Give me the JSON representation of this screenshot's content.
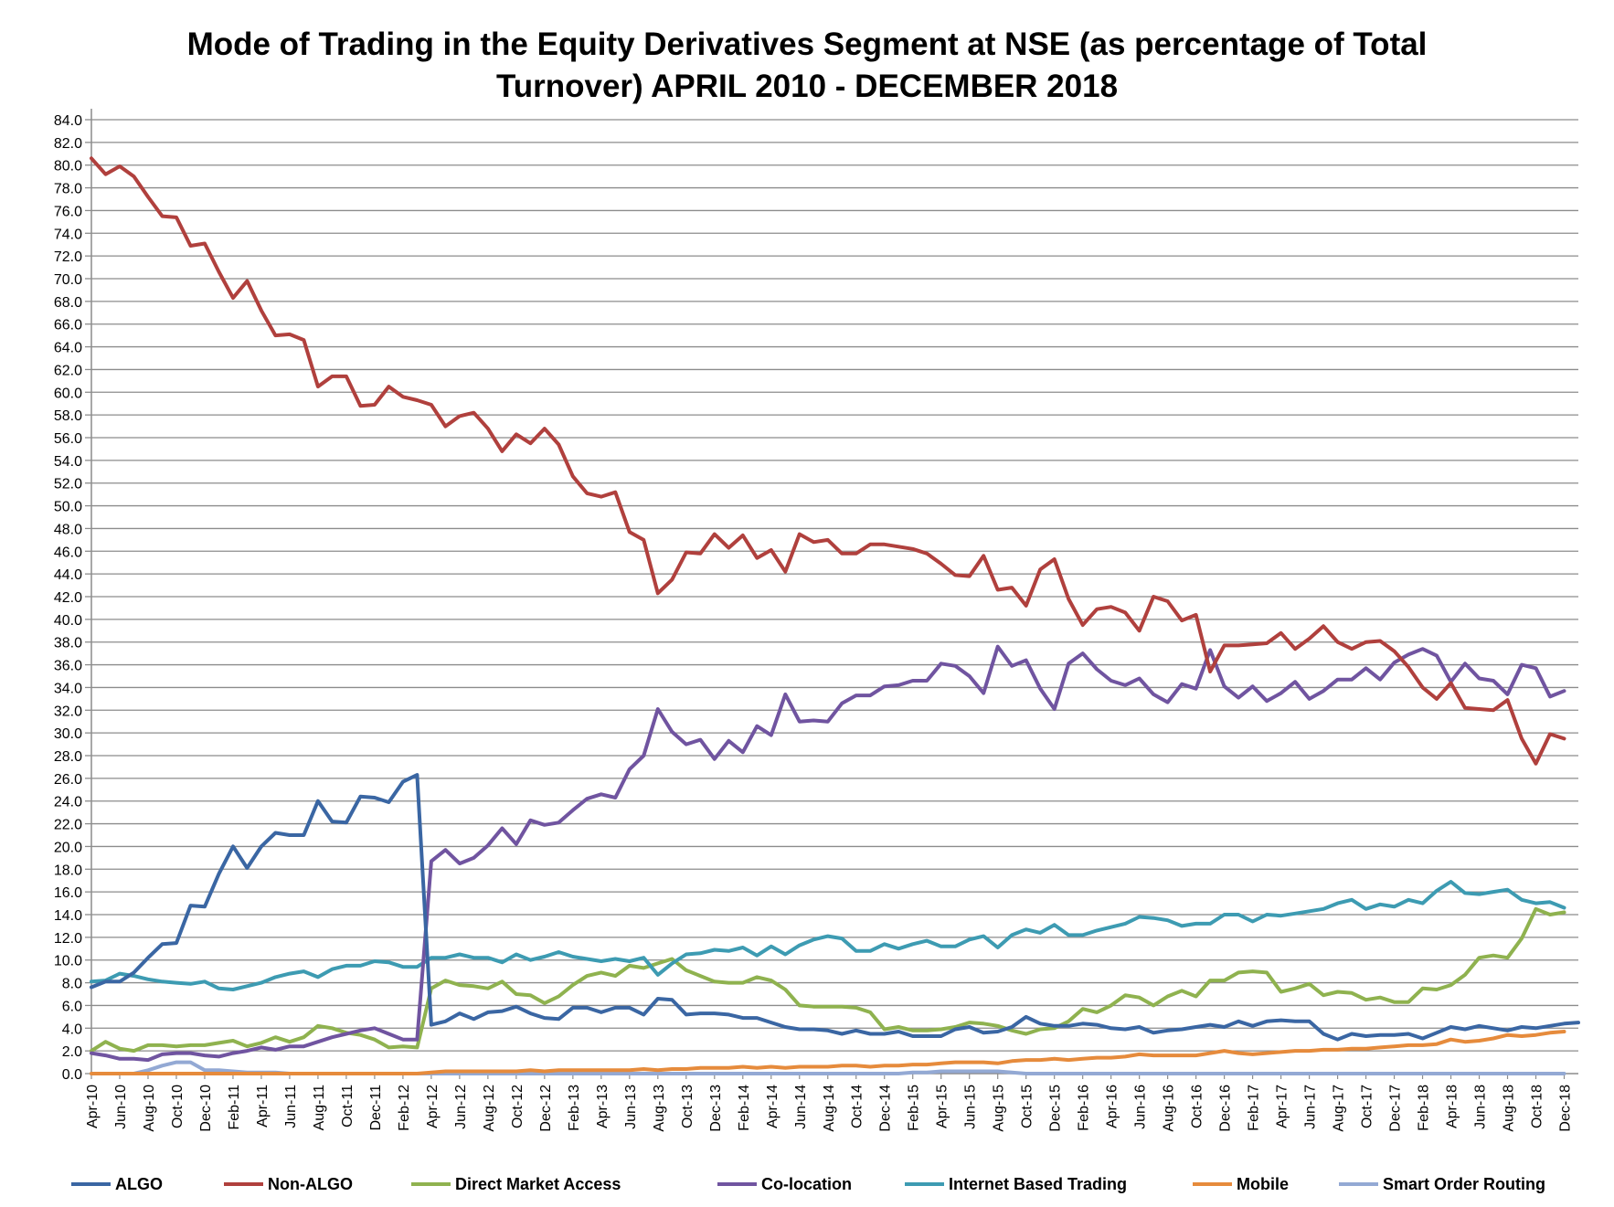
{
  "chart_data": {
    "type": "line",
    "title": "Mode of Trading in the Equity Derivatives Segment at NSE (as percentage of Total Turnover) APRIL 2010 - DECEMBER 2018",
    "title_lines": [
      "Mode of Trading in the Equity Derivatives Segment at NSE (as percentage of Total",
      "Turnover) APRIL 2010 - DECEMBER 2018"
    ],
    "xlabel": "",
    "ylabel": "",
    "ylim": [
      0,
      84
    ],
    "y_ticks": [
      "0.0",
      "2.0",
      "4.0",
      "6.0",
      "8.0",
      "10.0",
      "12.0",
      "14.0",
      "16.0",
      "18.0",
      "20.0",
      "22.0",
      "24.0",
      "26.0",
      "28.0",
      "30.0",
      "32.0",
      "34.0",
      "36.0",
      "38.0",
      "40.0",
      "42.0",
      "44.0",
      "46.0",
      "48.0",
      "50.0",
      "52.0",
      "54.0",
      "56.0",
      "58.0",
      "60.0",
      "62.0",
      "64.0",
      "66.0",
      "68.0",
      "70.0",
      "72.0",
      "74.0",
      "76.0",
      "78.0",
      "80.0",
      "82.0",
      "84.0"
    ],
    "x_start": "Apr-10",
    "x_end": "Dec-18",
    "x_tick_labels": [
      "Apr-10",
      "Jun-10",
      "Aug-10",
      "Oct-10",
      "Dec-10",
      "Feb-11",
      "Apr-11",
      "Jun-11",
      "Aug-11",
      "Oct-11",
      "Dec-11",
      "Feb-12",
      "Apr-12",
      "Jun-12",
      "Aug-12",
      "Oct-12",
      "Dec-12",
      "Feb-13",
      "Apr-13",
      "Jun-13",
      "Aug-13",
      "Oct-13",
      "Dec-13",
      "Feb-14",
      "Apr-14",
      "Jun-14",
      "Aug-14",
      "Oct-14",
      "Dec-14",
      "Feb-15",
      "Apr-15",
      "Jun-15",
      "Aug-15",
      "Oct-15",
      "Dec-15",
      "Feb-16",
      "Apr-16",
      "Jun-16",
      "Aug-16",
      "Oct-16",
      "Dec-16",
      "Feb-17",
      "Apr-17",
      "Jun-17",
      "Aug-17",
      "Oct-17",
      "Dec-17",
      "Feb-18",
      "Apr-18",
      "Jun-18",
      "Aug-18",
      "Oct-18",
      "Dec-18"
    ],
    "grid": "horizontal",
    "legend_position": "bottom",
    "series": [
      {
        "name": "ALGO",
        "color": "#3a66a3",
        "values": [
          7.6,
          8.1,
          8.1,
          8.9,
          10.2,
          11.4,
          11.5,
          14.8,
          14.7,
          17.6,
          20.0,
          18.1,
          20.0,
          21.2,
          21.0,
          21.0,
          24.0,
          22.2,
          22.1,
          24.4,
          24.3,
          23.9,
          25.7,
          26.3,
          4.3,
          4.6,
          5.3,
          4.8,
          5.4,
          5.5,
          5.9,
          5.3,
          4.9,
          4.8,
          5.8,
          5.8,
          5.4,
          5.8,
          5.8,
          5.2,
          6.6,
          6.5,
          5.2,
          5.3,
          5.3,
          5.2,
          4.9,
          4.9,
          4.5,
          4.1,
          3.9,
          3.9,
          3.8,
          3.5,
          3.8,
          3.5,
          3.5,
          3.7,
          3.3,
          3.3,
          3.3,
          3.9,
          4.1,
          3.6,
          3.7,
          4.1,
          5.0,
          4.4,
          4.2,
          4.2,
          4.4,
          4.3,
          4.0,
          3.9,
          4.1,
          3.6,
          3.8,
          3.9,
          4.1,
          4.3,
          4.1,
          4.6,
          4.2,
          4.6,
          4.7,
          4.6,
          4.6,
          3.5,
          3.0,
          3.5,
          3.3,
          3.4,
          3.4,
          3.5,
          3.1,
          3.6,
          4.1,
          3.9,
          4.2,
          4.0,
          3.8,
          4.1,
          4.0,
          4.2,
          4.4,
          4.5
        ]
      },
      {
        "name": "Non-ALGO",
        "color": "#b0403d",
        "values": [
          80.6,
          79.2,
          79.9,
          79.0,
          77.2,
          75.5,
          75.4,
          72.9,
          73.1,
          70.6,
          68.3,
          69.8,
          67.2,
          65.0,
          65.1,
          64.6,
          60.5,
          61.4,
          61.4,
          58.8,
          58.9,
          60.5,
          59.6,
          59.3,
          58.9,
          57.0,
          57.9,
          58.2,
          56.8,
          54.8,
          56.3,
          55.5,
          56.8,
          55.4,
          52.6,
          51.1,
          50.8,
          51.2,
          47.7,
          47.0,
          42.3,
          43.5,
          45.9,
          45.8,
          47.5,
          46.3,
          47.4,
          45.4,
          46.1,
          44.2,
          47.5,
          46.8,
          47.0,
          45.8,
          45.8,
          46.6,
          46.6,
          46.4,
          46.2,
          45.8,
          44.9,
          43.9,
          43.8,
          45.6,
          42.6,
          42.8,
          41.2,
          44.4,
          45.3,
          41.8,
          39.5,
          40.9,
          41.1,
          40.6,
          39.0,
          42.0,
          41.6,
          39.9,
          40.4,
          35.4,
          37.7,
          37.7,
          37.8,
          37.9,
          38.8,
          37.4,
          38.3,
          39.4,
          38.0,
          37.4,
          38.0,
          38.1,
          37.2,
          35.8,
          34.0,
          33.0,
          34.4,
          32.2,
          32.1,
          32.0,
          32.9,
          29.5,
          27.3,
          29.9,
          29.5
        ]
      },
      {
        "name": "Direct Market Access",
        "color": "#8fb24f",
        "values": [
          2.0,
          2.8,
          2.2,
          2.0,
          2.5,
          2.5,
          2.4,
          2.5,
          2.5,
          2.7,
          2.9,
          2.4,
          2.7,
          3.2,
          2.8,
          3.2,
          4.2,
          4.0,
          3.6,
          3.4,
          3.0,
          2.3,
          2.4,
          2.3,
          7.5,
          8.2,
          7.8,
          7.7,
          7.5,
          8.1,
          7.0,
          6.9,
          6.2,
          6.8,
          7.8,
          8.6,
          8.9,
          8.6,
          9.5,
          9.3,
          9.7,
          10.1,
          9.1,
          8.6,
          8.1,
          8.0,
          8.0,
          8.5,
          8.2,
          7.4,
          6.0,
          5.9,
          5.9,
          5.9,
          5.8,
          5.4,
          3.9,
          4.1,
          3.8,
          3.8,
          3.9,
          4.1,
          4.5,
          4.4,
          4.2,
          3.8,
          3.5,
          3.9,
          4.0,
          4.6,
          5.7,
          5.4,
          6.0,
          6.9,
          6.7,
          6.0,
          6.8,
          7.3,
          6.8,
          8.2,
          8.2,
          8.9,
          9.0,
          8.9,
          7.2,
          7.5,
          7.9,
          6.9,
          7.2,
          7.1,
          6.5,
          6.7,
          6.3,
          6.3,
          7.5,
          7.4,
          7.8,
          8.7,
          10.2,
          10.4,
          10.2,
          11.9,
          14.5,
          14.0,
          14.2
        ]
      },
      {
        "name": "Co-location",
        "color": "#7054a0",
        "values": [
          1.8,
          1.6,
          1.3,
          1.3,
          1.2,
          1.7,
          1.8,
          1.8,
          1.6,
          1.5,
          1.8,
          2.0,
          2.3,
          2.1,
          2.4,
          2.4,
          2.8,
          3.2,
          3.5,
          3.8,
          4.0,
          3.5,
          3.0,
          3.0,
          18.7,
          19.7,
          18.5,
          19.0,
          20.1,
          21.6,
          20.2,
          22.3,
          21.9,
          22.1,
          23.2,
          24.2,
          24.6,
          24.3,
          26.8,
          28.0,
          32.1,
          30.1,
          29.0,
          29.4,
          27.7,
          29.3,
          28.3,
          30.6,
          29.8,
          33.4,
          31.0,
          31.1,
          31.0,
          32.6,
          33.3,
          33.3,
          34.1,
          34.2,
          34.6,
          34.6,
          36.1,
          35.9,
          35.0,
          33.5,
          37.6,
          35.9,
          36.4,
          33.9,
          32.1,
          36.1,
          37.0,
          35.6,
          34.6,
          34.2,
          34.8,
          33.4,
          32.7,
          34.3,
          33.9,
          37.3,
          34.1,
          33.1,
          34.1,
          32.8,
          33.5,
          34.5,
          33.0,
          33.7,
          34.7,
          34.7,
          35.7,
          34.7,
          36.2,
          36.9,
          37.4,
          36.8,
          34.5,
          36.1,
          34.8,
          34.6,
          33.4,
          36.0,
          35.7,
          33.2,
          33.7
        ]
      },
      {
        "name": "Internet Based Trading",
        "color": "#3d9bb2",
        "values": [
          8.1,
          8.2,
          8.8,
          8.6,
          8.3,
          8.1,
          8.0,
          7.9,
          8.1,
          7.5,
          7.4,
          7.7,
          8.0,
          8.5,
          8.8,
          9.0,
          8.5,
          9.2,
          9.5,
          9.5,
          9.9,
          9.8,
          9.4,
          9.4,
          10.2,
          10.2,
          10.5,
          10.2,
          10.2,
          9.8,
          10.5,
          10.0,
          10.3,
          10.7,
          10.3,
          10.1,
          9.9,
          10.1,
          9.9,
          10.2,
          8.7,
          9.7,
          10.5,
          10.6,
          10.9,
          10.8,
          11.1,
          10.4,
          11.2,
          10.5,
          11.3,
          11.8,
          12.1,
          11.9,
          10.8,
          10.8,
          11.4,
          11.0,
          11.4,
          11.7,
          11.2,
          11.2,
          11.8,
          12.1,
          11.1,
          12.2,
          12.7,
          12.4,
          13.1,
          12.2,
          12.2,
          12.6,
          12.9,
          13.2,
          13.8,
          13.7,
          13.5,
          13.0,
          13.2,
          13.2,
          14.0,
          14.0,
          13.4,
          14.0,
          13.9,
          14.1,
          14.3,
          14.5,
          15.0,
          15.3,
          14.5,
          14.9,
          14.7,
          15.3,
          15.0,
          16.1,
          16.9,
          15.9,
          15.8,
          16.0,
          16.2,
          15.3,
          15.0,
          15.1,
          14.6
        ]
      },
      {
        "name": "Mobile",
        "color": "#e68b3c",
        "values": [
          0.0,
          0.0,
          0.0,
          0.0,
          0.0,
          0.0,
          0.0,
          0.0,
          0.0,
          0.0,
          0.0,
          0.0,
          0.0,
          0.0,
          0.0,
          0.0,
          0.0,
          0.0,
          0.0,
          0.0,
          0.0,
          0.0,
          0.0,
          0.0,
          0.1,
          0.2,
          0.2,
          0.2,
          0.2,
          0.2,
          0.2,
          0.3,
          0.2,
          0.3,
          0.3,
          0.3,
          0.3,
          0.3,
          0.3,
          0.4,
          0.3,
          0.4,
          0.4,
          0.5,
          0.5,
          0.5,
          0.6,
          0.5,
          0.6,
          0.5,
          0.6,
          0.6,
          0.6,
          0.7,
          0.7,
          0.6,
          0.7,
          0.7,
          0.8,
          0.8,
          0.9,
          1.0,
          1.0,
          1.0,
          0.9,
          1.1,
          1.2,
          1.2,
          1.3,
          1.2,
          1.3,
          1.4,
          1.4,
          1.5,
          1.7,
          1.6,
          1.6,
          1.6,
          1.6,
          1.8,
          2.0,
          1.8,
          1.7,
          1.8,
          1.9,
          2.0,
          2.0,
          2.1,
          2.1,
          2.2,
          2.2,
          2.3,
          2.4,
          2.5,
          2.5,
          2.6,
          3.0,
          2.8,
          2.9,
          3.1,
          3.4,
          3.3,
          3.4,
          3.6,
          3.7
        ]
      },
      {
        "name": "Smart Order Routing",
        "color": "#93a9d4",
        "values": [
          0.0,
          0.0,
          0.0,
          0.0,
          0.3,
          0.7,
          1.0,
          1.0,
          0.3,
          0.3,
          0.2,
          0.1,
          0.1,
          0.1,
          0.0,
          0.0,
          0.0,
          0.0,
          0.0,
          0.0,
          0.0,
          0.0,
          0.0,
          0.0,
          0.0,
          0.0,
          0.0,
          0.0,
          0.0,
          0.0,
          0.0,
          0.0,
          0.0,
          0.0,
          0.0,
          0.0,
          0.0,
          0.0,
          0.0,
          0.0,
          0.0,
          0.0,
          0.0,
          0.0,
          0.0,
          0.0,
          0.0,
          0.0,
          0.0,
          0.0,
          0.0,
          0.0,
          0.0,
          0.0,
          0.0,
          0.0,
          0.0,
          0.0,
          0.1,
          0.1,
          0.2,
          0.2,
          0.2,
          0.2,
          0.2,
          0.1,
          0.0,
          0.0,
          0.0,
          0.0,
          0.0,
          0.0,
          0.0,
          0.0,
          0.0,
          0.0,
          0.0,
          0.0,
          0.0,
          0.0,
          0.0,
          0.0,
          0.0,
          0.0,
          0.0,
          0.0,
          0.0,
          0.0,
          0.0,
          0.0,
          0.0,
          0.0,
          0.0,
          0.0,
          0.0,
          0.0,
          0.0,
          0.0,
          0.0,
          0.0,
          0.0,
          0.0,
          0.0,
          0.0,
          0.0
        ]
      }
    ]
  }
}
